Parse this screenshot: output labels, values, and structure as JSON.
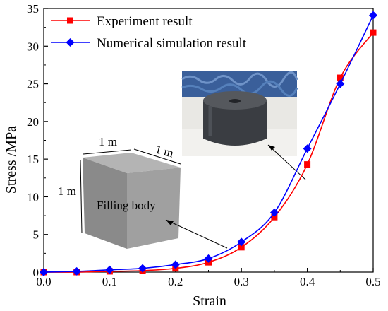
{
  "colors": {
    "experiment": "#ff0000",
    "simulation": "#0000ff",
    "axis": "#000000",
    "cube_top": "#b4b4b4",
    "cube_front": "#8a8a8a",
    "cube_side": "#a0a0a0",
    "photo_bg": "#3a5f9a",
    "cylinder": "#3a3d42"
  },
  "annotations": {
    "cube_width": "1 m",
    "cube_depth": "1 m",
    "cube_height": "1 m",
    "cube_label": "Filling body"
  },
  "chart_data": {
    "type": "line",
    "title": "",
    "xlabel": "Strain",
    "ylabel": "Stress /MPa",
    "xlim": [
      0.0,
      0.5
    ],
    "ylim": [
      0,
      35
    ],
    "xticks": [
      0.0,
      0.1,
      0.2,
      0.3,
      0.4,
      0.5
    ],
    "xtick_labels": [
      "0.0",
      "0.1",
      "0.2",
      "0.3",
      "0.4",
      "0.5"
    ],
    "yticks": [
      0,
      5,
      10,
      15,
      20,
      25,
      30,
      35
    ],
    "ytick_labels": [
      "0",
      "5",
      "10",
      "15",
      "20",
      "25",
      "30",
      "35"
    ],
    "grid": false,
    "legend_position": "top-left",
    "series": [
      {
        "name": "Experiment result",
        "color": "#ff0000",
        "marker": "square",
        "x": [
          0.0,
          0.05,
          0.1,
          0.15,
          0.2,
          0.25,
          0.3,
          0.35,
          0.4,
          0.45,
          0.5
        ],
        "y": [
          0.0,
          0.0,
          0.1,
          0.2,
          0.5,
          1.3,
          3.3,
          7.3,
          14.3,
          25.8,
          31.8
        ]
      },
      {
        "name": "Numerical simulation result",
        "color": "#0000ff",
        "marker": "diamond",
        "x": [
          0.0,
          0.05,
          0.1,
          0.15,
          0.2,
          0.25,
          0.3,
          0.35,
          0.4,
          0.45,
          0.5
        ],
        "y": [
          0.0,
          0.1,
          0.3,
          0.5,
          1.0,
          1.8,
          4.0,
          7.9,
          16.4,
          25.0,
          34.1
        ]
      }
    ]
  }
}
